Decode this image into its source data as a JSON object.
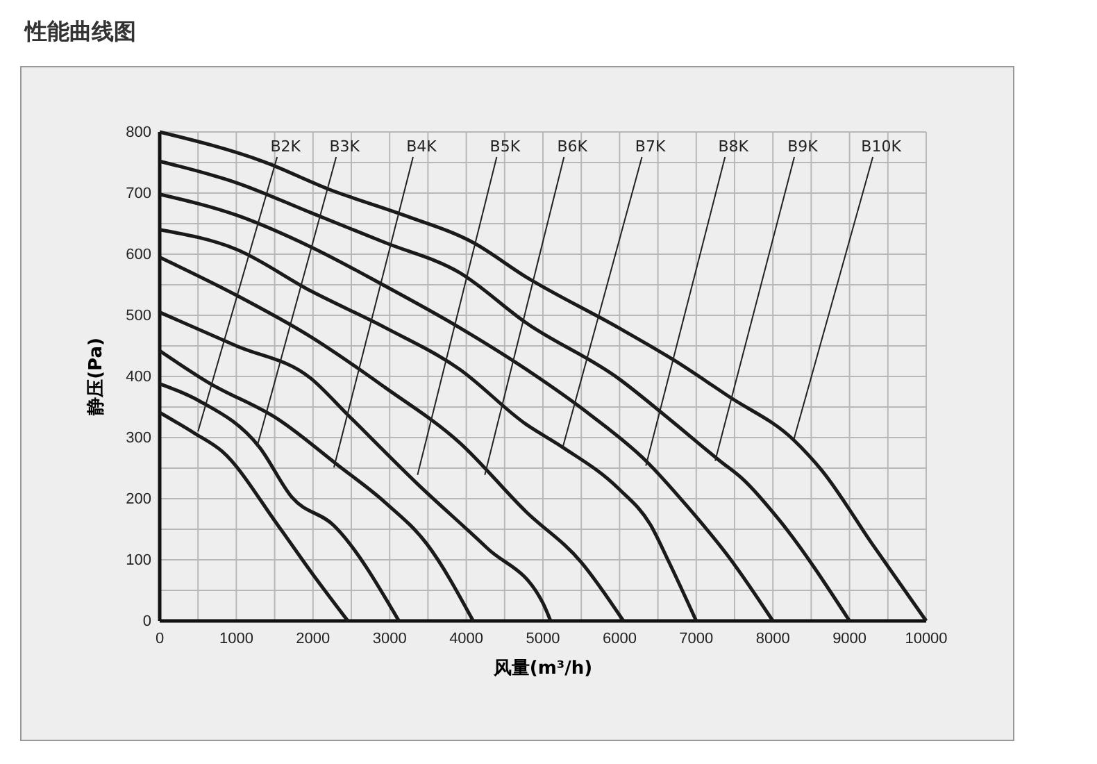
{
  "chart_data": {
    "type": "line",
    "title": "性能曲线图",
    "xlabel": "风量(m³/h)",
    "ylabel": "静压(Pa)",
    "xlim": [
      0,
      10000
    ],
    "ylim": [
      0,
      800
    ],
    "xticks": [
      0,
      {
        "value": 500,
        "label": null
      },
      1000,
      {
        "value": 1500,
        "label": null
      },
      2000,
      {
        "value": 2500,
        "label": null
      },
      3000,
      {
        "value": 3500,
        "label": null
      },
      4000,
      {
        "value": 4500,
        "label": null
      },
      5000,
      {
        "value": 5500,
        "label": null
      },
      6000,
      {
        "value": 6500,
        "label": null
      },
      7000,
      {
        "value": 7500,
        "label": null
      },
      8000,
      {
        "value": 8500,
        "label": null
      },
      9000,
      {
        "value": 9500,
        "label": null
      },
      10000
    ],
    "yticks": [
      0,
      {
        "value": 50,
        "label": null
      },
      100,
      {
        "value": 150,
        "label": null
      },
      200,
      {
        "value": 250,
        "label": null
      },
      300,
      {
        "value": 350,
        "label": null
      },
      400,
      {
        "value": 450,
        "label": null
      },
      500,
      {
        "value": 550,
        "label": null
      },
      600,
      {
        "value": 650,
        "label": null
      },
      700,
      {
        "value": 750,
        "label": null
      },
      800
    ],
    "grid": true,
    "marker": "none",
    "line_style": "solid",
    "series": [
      {
        "color": "#1a1a1a",
        "x": [
          0,
          455,
          818,
          1545,
          1970,
          2455
        ],
        "values": [
          341,
          307,
          277,
          156,
          81,
          0
        ]
      },
      {
        "color": "#1a1a1a",
        "x": [
          0,
          515,
          1303,
          1727,
          2273,
          3121
        ],
        "values": [
          388,
          360,
          284,
          202,
          156,
          0
        ]
      },
      {
        "color": "#1a1a1a",
        "x": [
          0,
          636,
          1545,
          2333,
          2940,
          3485,
          4090
        ],
        "values": [
          442,
          390,
          330,
          254,
          194,
          126,
          0
        ]
      },
      {
        "color": "#1a1a1a",
        "x": [
          0,
          1000,
          1970,
          2455,
          3364,
          4273,
          5000,
          5100
        ],
        "values": [
          505,
          450,
          397,
          337,
          224,
          119,
          29,
          0
        ]
      },
      {
        "color": "#1a1a1a",
        "x": [
          0,
          1000,
          1970,
          2940,
          3910,
          4777,
          5500,
          6050
        ],
        "values": [
          595,
          533,
          465,
          382,
          292,
          179,
          96,
          0
        ]
      },
      {
        "color": "#1a1a1a",
        "x": [
          0,
          1000,
          1970,
          2940,
          3910,
          4777,
          5259,
          5982,
          6404,
          6645,
          7000
        ],
        "values": [
          640,
          608,
          540,
          480,
          412,
          322,
          284,
          217,
          157,
          96,
          0
        ]
      },
      {
        "color": "#1a1a1a",
        "x": [
          0,
          1000,
          1970,
          2940,
          3910,
          4777,
          5620,
          6343,
          6886,
          7428,
          8000
        ],
        "values": [
          698,
          664,
          612,
          548,
          480,
          412,
          337,
          262,
          187,
          104,
          0
        ]
      },
      {
        "color": "#1a1a1a",
        "x": [
          0,
          1000,
          1970,
          2940,
          3910,
          4777,
          5982,
          6584,
          7307,
          7608,
          8090,
          9000
        ],
        "values": [
          752,
          717,
          668,
          619,
          570,
          488,
          397,
          337,
          262,
          232,
          164,
          0
        ]
      },
      {
        "color": "#1a1a1a",
        "x": [
          0,
          1364,
          2212,
          3182,
          4090,
          4777,
          5982,
          6705,
          7428,
          8271,
          8633,
          9295,
          10000
        ],
        "values": [
          800,
          751,
          706,
          664,
          619,
          563,
          480,
          427,
          367,
          296,
          247,
          126,
          0
        ]
      }
    ],
    "annotations": [
      {
        "text": "B2K",
        "x": 500,
        "y": 310
      },
      {
        "text": "B3K",
        "x": 1270,
        "y": 285
      },
      {
        "text": "B4K",
        "x": 2273,
        "y": 251
      },
      {
        "text": "B5K",
        "x": 3364,
        "y": 239
      },
      {
        "text": "B6K",
        "x": 4242,
        "y": 239
      },
      {
        "text": "B7K",
        "x": 5259,
        "y": 284
      },
      {
        "text": "B8K",
        "x": 6343,
        "y": 254
      },
      {
        "text": "B9K",
        "x": 7247,
        "y": 262
      },
      {
        "text": "B10K",
        "x": 8271,
        "y": 296
      }
    ]
  }
}
